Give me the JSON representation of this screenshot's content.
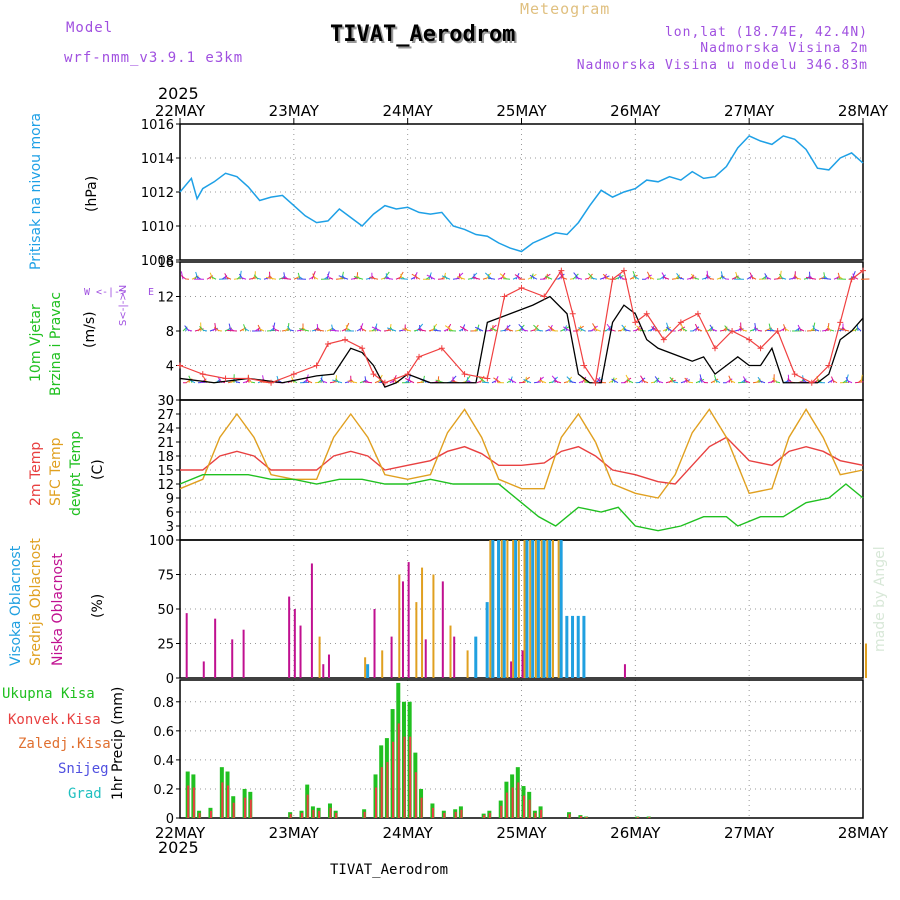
{
  "header": {
    "model_label": "Model",
    "model_name": "wrf-nmm_v3.9.1  e3km",
    "meteogram": "Meteogram",
    "station": "TIVAT_Aerodrom",
    "lonlat": "lon,lat (18.74E, 42.4N)",
    "elevation": "Nadmorska Visina 2m",
    "model_elevation": "Nadmorska Visina u modelu 346.83m",
    "year_top": "2025",
    "year_bottom": "2025",
    "footer_station": "TIVAT_Aerodrom",
    "credit": "made by Angel"
  },
  "colors": {
    "pressure": "#1ea0e6",
    "wind_label": "#10c010",
    "temp2m": "#e84040",
    "sfc": "#e0a020",
    "dewpt": "#20c020",
    "high_cloud": "#20a0e0",
    "mid_cloud": "#e0a020",
    "low_cloud": "#c01090",
    "purple": "#a050e0"
  },
  "chart_data": [
    {
      "type": "line",
      "panel": "pressure",
      "dates": [
        "22MAY",
        "23MAY",
        "24MAY",
        "25MAY",
        "26MAY",
        "27MAY",
        "28MAY"
      ],
      "ylabel_left": "Pritisak na nivou mora",
      "unit": "(hPa)",
      "ylim": [
        1008,
        1016
      ],
      "yticks": [
        "1008",
        "1010",
        "1012",
        "1014",
        "1016"
      ],
      "x": [
        0,
        0.1,
        0.15,
        0.2,
        0.3,
        0.4,
        0.5,
        0.6,
        0.7,
        0.8,
        0.9,
        1.0,
        1.1,
        1.2,
        1.3,
        1.4,
        1.5,
        1.6,
        1.7,
        1.8,
        1.9,
        2.0,
        2.1,
        2.2,
        2.3,
        2.4,
        2.5,
        2.6,
        2.7,
        2.8,
        2.9,
        3.0,
        3.1,
        3.2,
        3.3,
        3.4,
        3.5,
        3.6,
        3.7,
        3.8,
        3.9,
        4.0,
        4.1,
        4.2,
        4.3,
        4.4,
        4.5,
        4.6,
        4.7,
        4.8,
        4.9,
        5.0,
        5.1,
        5.2,
        5.3,
        5.4,
        5.5,
        5.6,
        5.7,
        5.8,
        5.9,
        6.0
      ],
      "values": [
        1012,
        1012.8,
        1011.6,
        1012.2,
        1012.6,
        1013.1,
        1012.9,
        1012.3,
        1011.5,
        1011.7,
        1011.8,
        1011.2,
        1010.6,
        1010.2,
        1010.3,
        1011.0,
        1010.5,
        1010.0,
        1010.7,
        1011.2,
        1011.0,
        1011.1,
        1010.8,
        1010.7,
        1010.8,
        1010.0,
        1009.8,
        1009.5,
        1009.4,
        1009.0,
        1008.7,
        1008.5,
        1009.0,
        1009.3,
        1009.6,
        1009.5,
        1010.2,
        1011.2,
        1012.1,
        1011.7,
        1012.0,
        1012.2,
        1012.7,
        1012.6,
        1012.9,
        1012.7,
        1013.2,
        1012.8,
        1012.9,
        1013.5,
        1014.6,
        1015.3,
        1015.0,
        1014.8,
        1015.3,
        1015.1,
        1014.5,
        1013.4,
        1013.3,
        1014.0,
        1014.3,
        1013.7
      ]
    },
    {
      "type": "line",
      "panel": "wind",
      "ylabel_left_1": "10m Vjetar",
      "ylabel_left_2": "Brzina i Pravac",
      "unit": "(m/s)",
      "ylim": [
        0,
        16
      ],
      "yticks": [
        "0",
        "4",
        "8",
        "12",
        "16"
      ],
      "compass": "W <-|-> E   S <-|-> N",
      "compass_w": "W",
      "compass_e": "E",
      "compass_s": "S<-|->N",
      "compass_ns": "<-|->",
      "compass_n": "N",
      "series": [
        {
          "name": "speed",
          "color": "#000000",
          "x": [
            0,
            0.3,
            0.6,
            0.9,
            1.2,
            1.35,
            1.5,
            1.6,
            1.7,
            1.8,
            1.9,
            2.0,
            2.2,
            2.4,
            2.6,
            2.7,
            2.9,
            3.1,
            3.25,
            3.4,
            3.5,
            3.6,
            3.7,
            3.8,
            3.9,
            4.0,
            4.1,
            4.2,
            4.4,
            4.5,
            4.6,
            4.7,
            4.8,
            4.9,
            5.0,
            5.1,
            5.2,
            5.3,
            5.5,
            5.6,
            5.7,
            5.8,
            5.9,
            6.0
          ],
          "values": [
            2.5,
            2,
            2.5,
            2,
            2.8,
            3,
            6,
            5.5,
            4,
            1.5,
            2,
            3,
            2,
            2,
            2,
            9,
            10,
            11,
            12,
            10,
            3,
            2,
            2,
            9,
            11,
            10,
            7,
            6,
            5,
            4.5,
            5,
            3,
            4,
            5,
            4,
            4,
            6,
            2,
            2,
            2,
            3,
            7,
            8,
            9.5
          ]
        },
        {
          "name": "gust",
          "color": "#f04040",
          "x": [
            0,
            0.2,
            0.4,
            0.6,
            0.8,
            1.0,
            1.2,
            1.3,
            1.45,
            1.6,
            1.7,
            1.8,
            2.0,
            2.1,
            2.3,
            2.5,
            2.7,
            2.85,
            3.0,
            3.2,
            3.35,
            3.45,
            3.55,
            3.65,
            3.8,
            3.9,
            4.0,
            4.1,
            4.25,
            4.4,
            4.55,
            4.7,
            4.85,
            5.0,
            5.1,
            5.25,
            5.4,
            5.55,
            5.7,
            5.8,
            5.9,
            6.0
          ],
          "values": [
            4,
            3,
            2.5,
            2.5,
            2,
            3,
            4,
            6.5,
            7,
            6,
            3,
            2,
            3,
            5,
            6,
            3,
            2.5,
            12,
            13,
            12,
            15,
            10,
            4,
            2,
            14,
            15,
            9,
            10,
            7,
            9,
            10,
            6,
            8,
            7,
            6,
            8,
            3,
            2,
            4,
            9,
            14,
            15
          ]
        }
      ]
    },
    {
      "type": "line",
      "panel": "temperature",
      "ylabel_left_1": "2m Temp",
      "ylabel_left_2": "SFC Temp",
      "ylabel_left_3": "dewpt Temp",
      "unit": "(C)",
      "ylim": [
        0,
        30
      ],
      "yticks": [
        "0",
        "3",
        "6",
        "9",
        "12",
        "15",
        "18",
        "21",
        "24",
        "27",
        "30"
      ],
      "series": [
        {
          "name": "2m Temp",
          "color": "#e84040",
          "x": [
            0,
            0.2,
            0.35,
            0.5,
            0.65,
            0.8,
            1.0,
            1.2,
            1.35,
            1.5,
            1.65,
            1.8,
            2.0,
            2.2,
            2.35,
            2.5,
            2.65,
            2.8,
            3.0,
            3.2,
            3.35,
            3.5,
            3.65,
            3.8,
            4.0,
            4.2,
            4.35,
            4.5,
            4.65,
            4.8,
            5.0,
            5.2,
            5.35,
            5.5,
            5.65,
            5.8,
            6.0
          ],
          "values": [
            15,
            15,
            18,
            19,
            18,
            15,
            15,
            15,
            18,
            19,
            18,
            15,
            16,
            17,
            19,
            20,
            18.5,
            16,
            16,
            16.5,
            19,
            20,
            18,
            15,
            14,
            12.5,
            12,
            16,
            20,
            22,
            17,
            16,
            19,
            20,
            19,
            17,
            16
          ]
        },
        {
          "name": "SFC Temp",
          "color": "#e0a020",
          "x": [
            0,
            0.2,
            0.35,
            0.5,
            0.65,
            0.8,
            1.0,
            1.2,
            1.35,
            1.5,
            1.65,
            1.8,
            2.0,
            2.2,
            2.35,
            2.5,
            2.65,
            2.8,
            3.0,
            3.2,
            3.35,
            3.5,
            3.65,
            3.8,
            4.0,
            4.2,
            4.35,
            4.5,
            4.65,
            4.8,
            5.0,
            5.2,
            5.35,
            5.5,
            5.65,
            5.8,
            6.0
          ],
          "values": [
            11,
            13,
            22,
            27,
            22,
            14,
            13,
            13,
            22,
            27,
            22,
            14,
            13,
            14,
            23,
            28,
            22,
            13,
            11,
            11,
            22,
            27,
            21,
            12,
            10,
            9,
            14,
            23,
            28,
            22,
            10,
            11,
            22,
            28,
            22,
            14,
            15
          ]
        },
        {
          "name": "dewpt Temp",
          "color": "#20c020",
          "x": [
            0,
            0.2,
            0.4,
            0.6,
            0.8,
            1.0,
            1.2,
            1.4,
            1.6,
            1.8,
            2.0,
            2.2,
            2.4,
            2.6,
            2.8,
            3.0,
            3.15,
            3.3,
            3.5,
            3.7,
            3.85,
            4.0,
            4.2,
            4.4,
            4.6,
            4.8,
            4.9,
            5.1,
            5.3,
            5.5,
            5.7,
            5.85,
            6.0
          ],
          "values": [
            12,
            14,
            14,
            14,
            13,
            13,
            12,
            13,
            13,
            12,
            12,
            13,
            12,
            12,
            12,
            8,
            5,
            3,
            7,
            6,
            7,
            3,
            2,
            3,
            5,
            5,
            3,
            5,
            5,
            8,
            9,
            12,
            9
          ]
        }
      ]
    },
    {
      "type": "bar",
      "panel": "clouds",
      "ylabel_left_1": "Visoka Oblacnost",
      "ylabel_left_2": "Srednja Oblacnost",
      "ylabel_left_3": "Niska Oblacnost",
      "unit": "(%)",
      "ylim": [
        0,
        100
      ],
      "yticks": [
        "0",
        "25",
        "50",
        "75",
        "100"
      ],
      "series": [
        {
          "name": "Niska",
          "color": "#c01090",
          "x": [
            0.05,
            0.2,
            0.3,
            0.45,
            0.55,
            0.95,
            1.0,
            1.05,
            1.15,
            1.25,
            1.3,
            1.7,
            1.85,
            1.95,
            2.0,
            2.15,
            2.3,
            2.4,
            2.9,
            3.0,
            3.9
          ],
          "values": [
            47,
            12,
            43,
            28,
            35,
            59,
            50,
            38,
            83,
            10,
            17,
            50,
            30,
            70,
            84,
            28,
            70,
            30,
            12,
            20,
            10
          ]
        },
        {
          "name": "Srednja",
          "color": "#e0a020",
          "x": [
            1.2,
            1.6,
            1.75,
            1.9,
            2.05,
            2.1,
            2.2,
            2.35,
            2.5,
            2.7,
            2.8,
            2.85,
            2.9,
            2.95,
            3.0,
            3.05,
            3.1,
            3.15,
            3.2,
            3.25,
            3.3,
            6.0
          ],
          "values": [
            30,
            15,
            20,
            75,
            55,
            80,
            75,
            38,
            20,
            100,
            100,
            100,
            100,
            100,
            100,
            100,
            100,
            100,
            100,
            100,
            100,
            25
          ]
        },
        {
          "name": "Visoka",
          "color": "#20a0e0",
          "x": [
            1.6,
            2.55,
            2.65,
            2.7,
            2.75,
            2.8,
            2.9,
            3.0,
            3.05,
            3.1,
            3.15,
            3.2,
            3.3,
            3.35,
            3.4,
            3.45,
            3.5
          ],
          "values": [
            10,
            30,
            55,
            100,
            100,
            100,
            100,
            100,
            100,
            100,
            100,
            100,
            100,
            45,
            45,
            45,
            45
          ]
        }
      ]
    },
    {
      "type": "bar",
      "panel": "precip",
      "legend": [
        "Ukupna Kisa",
        "Konvek.Kisa",
        "Zaledj.Kisa",
        "Snijeg",
        "Grad"
      ],
      "legend_colors": [
        "#20c020",
        "#e84040",
        "#e07030",
        "#5050e0",
        "#20c0c0"
      ],
      "unit": "1hr Precip (mm)",
      "ylim": [
        0,
        0.95
      ],
      "yticks": [
        "0",
        "0.2",
        "0.4",
        "0.6",
        "0.8"
      ],
      "x": [
        0.05,
        0.1,
        0.15,
        0.25,
        0.35,
        0.4,
        0.45,
        0.55,
        0.6,
        0.95,
        1.05,
        1.1,
        1.15,
        1.2,
        1.3,
        1.35,
        1.6,
        1.7,
        1.75,
        1.8,
        1.85,
        1.9,
        1.95,
        2.0,
        2.05,
        2.1,
        2.2,
        2.3,
        2.4,
        2.45,
        2.65,
        2.7,
        2.8,
        2.85,
        2.9,
        2.95,
        3.0,
        3.05,
        3.1,
        3.15,
        3.4,
        3.5,
        3.55,
        4.0,
        4.1,
        4.3,
        4.45,
        4.5,
        4.7,
        4.75,
        4.8,
        4.85,
        4.9,
        4.95,
        5.0,
        5.05,
        5.1,
        5.15,
        5.2,
        5.25,
        5.3,
        5.45,
        5.5,
        5.55,
        5.6,
        5.65,
        5.7,
        5.75,
        5.8,
        5.85,
        5.9,
        5.95
      ],
      "values": [
        0.32,
        0.3,
        0.05,
        0.07,
        0.35,
        0.32,
        0.15,
        0.2,
        0.18,
        0.04,
        0.05,
        0.23,
        0.08,
        0.07,
        0.1,
        0.05,
        0.06,
        0.3,
        0.5,
        0.55,
        0.75,
        0.93,
        0.8,
        0.8,
        0.45,
        0.2,
        0.1,
        0.05,
        0.06,
        0.08,
        0.03,
        0.05,
        0.12,
        0.25,
        0.3,
        0.35,
        0.22,
        0.18,
        0.05,
        0.08,
        0.04,
        0.02,
        0.01,
        0.01,
        0.01,
        0,
        0,
        0,
        0,
        0,
        0,
        0,
        0,
        0,
        0,
        0,
        0,
        0,
        0,
        0,
        0,
        0,
        0,
        0,
        0,
        0,
        0,
        0,
        0,
        0,
        0,
        0
      ]
    }
  ]
}
